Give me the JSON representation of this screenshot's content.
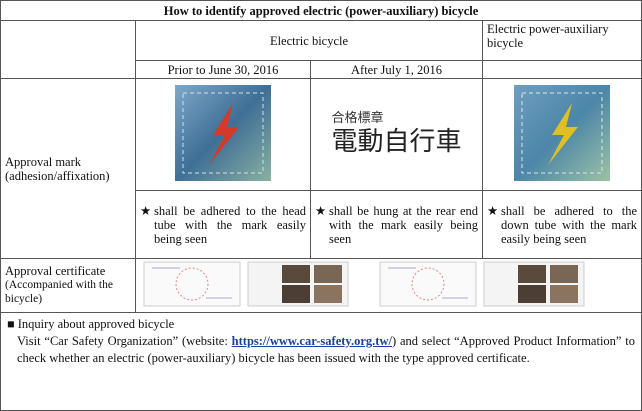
{
  "title": "How to identify approved electric (power-auxiliary) bicycle",
  "header": {
    "electric": "Electric bicycle",
    "power_auxiliary": "Electric power-auxiliary bicycle",
    "prior": "Prior to June 30, 2016",
    "after": "After July 1, 2016"
  },
  "approval_mark": {
    "label": "Approval mark (adhesion/affixation)",
    "sticker_line1": "合格標章",
    "sticker_line2": "電動自行車",
    "note_marker": "★",
    "notes": [
      "shall be adhered to the head tube with the mark easily being seen",
      "shall be hung at the rear end with the mark easily being seen",
      "shall be adhered to the down tube with the mark easily being seen"
    ]
  },
  "approval_certificate": {
    "label": "Approval certificate",
    "sublabel": "(Accompanied with the bicycle)"
  },
  "inquiry": {
    "marker": "■",
    "heading": "Inquiry about approved bicycle",
    "text_before": "Visit “Car Safety Organization” (website: ",
    "link": "https://www.car-safety.org.tw/",
    "text_after": ") and select “Approved Product Information” to check whether an electric (power-auxiliary) bicycle has been issued with the type approved certificate."
  }
}
